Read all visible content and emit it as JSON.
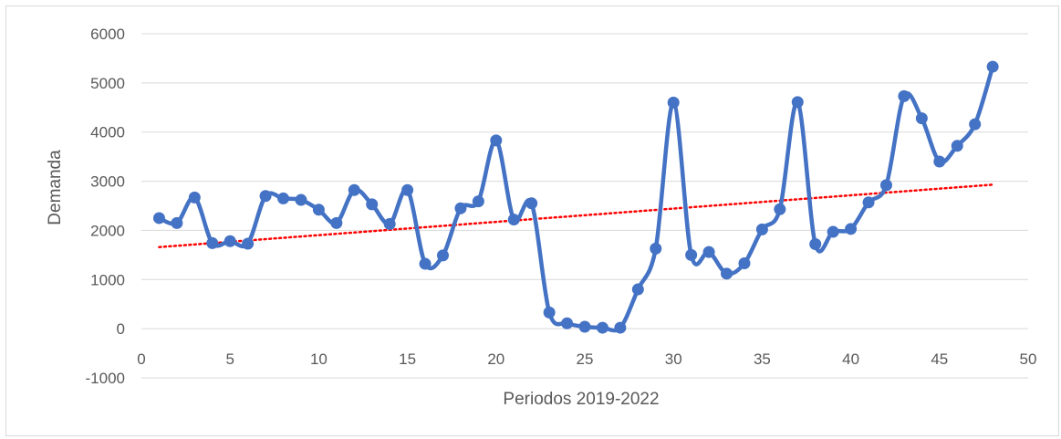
{
  "chart_data": {
    "type": "line",
    "title": "",
    "xlabel": "Periodos 2019-2022",
    "ylabel": "Demanda",
    "xlim": [
      0,
      50
    ],
    "ylim": [
      -1000,
      6000
    ],
    "x_ticks": [
      0,
      5,
      10,
      15,
      20,
      25,
      30,
      35,
      40,
      45,
      50
    ],
    "y_ticks": [
      -1000,
      0,
      1000,
      2000,
      3000,
      4000,
      5000,
      6000
    ],
    "grid": "horizontal",
    "legend": "none",
    "series": [
      {
        "color": "#4472c4",
        "smooth": true,
        "markers": true,
        "x": [
          1,
          2,
          3,
          4,
          5,
          6,
          7,
          8,
          9,
          10,
          11,
          12,
          13,
          14,
          15,
          16,
          17,
          18,
          19,
          20,
          21,
          22,
          23,
          24,
          25,
          26,
          27,
          28,
          29,
          30,
          31,
          32,
          33,
          34,
          35,
          36,
          37,
          38,
          39,
          40,
          41,
          42,
          43,
          44,
          45,
          46,
          47,
          48
        ],
        "y": [
          2250,
          2150,
          2670,
          1740,
          1780,
          1730,
          2700,
          2650,
          2620,
          2420,
          2150,
          2820,
          2530,
          2130,
          2820,
          1320,
          1490,
          2450,
          2590,
          3830,
          2220,
          2550,
          330,
          110,
          40,
          20,
          20,
          800,
          1630,
          4600,
          1500,
          1560,
          1120,
          1330,
          2020,
          2430,
          4610,
          1720,
          1970,
          2030,
          2570,
          2920,
          4730,
          4280,
          3400,
          3720,
          4160,
          5330
        ]
      }
    ],
    "trendline": {
      "type": "linear",
      "color": "#ff0000",
      "style": "dotted",
      "x": [
        1,
        48
      ],
      "y": [
        1660,
        2930
      ]
    }
  }
}
